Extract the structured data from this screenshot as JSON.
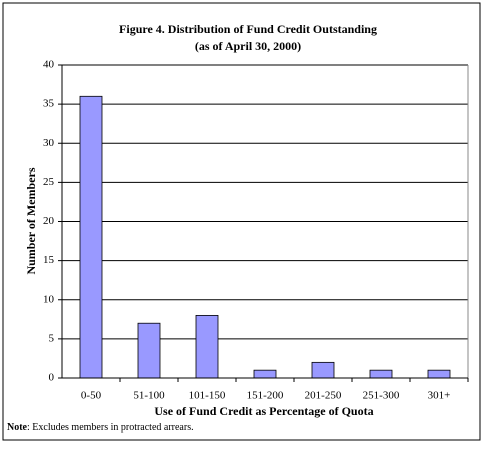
{
  "chart_data": {
    "type": "bar",
    "title": "Figure 4. Distribution of Fund Credit Outstanding",
    "subtitle": "(as of April 30, 2000)",
    "x_label": "Use of Fund Credit as Percentage of Quota",
    "y_label": "Number of Members",
    "note_label": "Note",
    "note_text": ": Excludes members in protracted arrears.",
    "categories": [
      "0-50",
      "51-100",
      "101-150",
      "151-200",
      "201-250",
      "251-300",
      "301+"
    ],
    "values": [
      36,
      7,
      8,
      1,
      2,
      1,
      1
    ],
    "color": "#9999ff",
    "ylim": [
      0,
      40
    ],
    "yticks": [
      0,
      5,
      10,
      15,
      20,
      25,
      30,
      35,
      40
    ],
    "grid": true
  }
}
